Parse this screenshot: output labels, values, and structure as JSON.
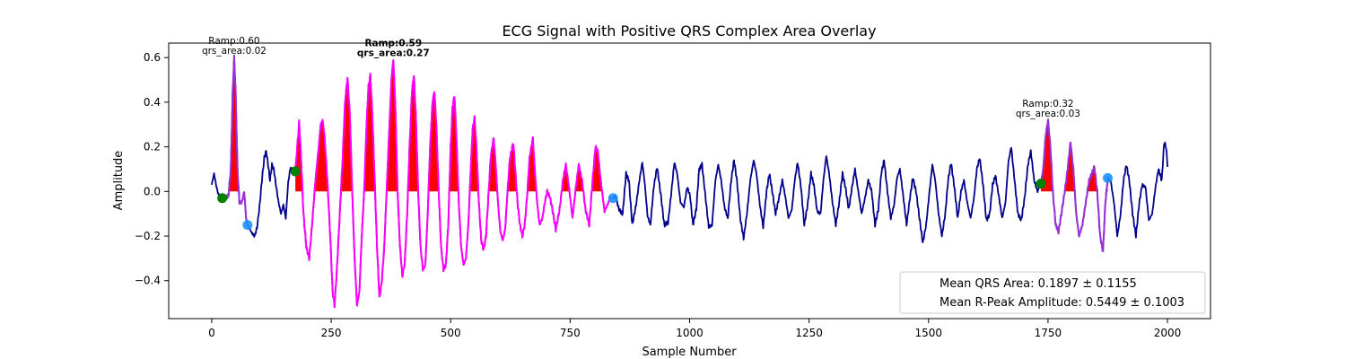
{
  "chart_data": {
    "type": "line",
    "title": "ECG Signal with Positive QRS Complex Area Overlay",
    "xlabel": "Sample Number",
    "ylabel": "Amplitude",
    "xlim": [
      -90,
      2090
    ],
    "ylim": [
      -0.57,
      0.665
    ],
    "xticks": [
      0,
      250,
      500,
      750,
      1000,
      1250,
      1500,
      1750,
      2000
    ],
    "yticks": [
      -0.4,
      -0.2,
      0.0,
      0.2,
      0.4,
      0.6
    ],
    "xtick_labels": [
      "0",
      "250",
      "500",
      "750",
      "1000",
      "1250",
      "1500",
      "1750",
      "2000"
    ],
    "ytick_labels": [
      "−0.4",
      "−0.2",
      "0.0",
      "0.2",
      "0.4",
      "0.6"
    ],
    "grid": false,
    "legend_position": "lower right",
    "legend": [
      "Mean QRS Area: 0.1897 ± 0.1155",
      "Mean R-Peak Amplitude: 0.5449 ± 0.1003"
    ],
    "colors": {
      "signal": "#00008b",
      "segment_magenta": "#ff00ff",
      "segment_purple": "#9b30d9",
      "area_fill": "#ff0000",
      "onset_marker": "#008000",
      "offset_marker": "#1e90ff"
    },
    "segments": [
      {
        "name": "segment 1",
        "x_start": 18,
        "x_end": 75,
        "color": "purple"
      },
      {
        "name": "segment 2",
        "x_start": 175,
        "x_end": 840,
        "color": "magenta"
      },
      {
        "name": "segment 3",
        "x_start": 1735,
        "x_end": 1875,
        "color": "purple"
      }
    ],
    "qrs_peaks": [
      {
        "x": 47,
        "y": 0.6
      },
      {
        "x": 183,
        "y": 0.31
      },
      {
        "x": 232,
        "y": 0.32
      },
      {
        "x": 284,
        "y": 0.51
      },
      {
        "x": 332,
        "y": 0.52
      },
      {
        "x": 380,
        "y": 0.59
      },
      {
        "x": 423,
        "y": 0.52
      },
      {
        "x": 466,
        "y": 0.45
      },
      {
        "x": 508,
        "y": 0.43
      },
      {
        "x": 550,
        "y": 0.33
      },
      {
        "x": 590,
        "y": 0.24
      },
      {
        "x": 631,
        "y": 0.22
      },
      {
        "x": 672,
        "y": 0.24
      },
      {
        "x": 1750,
        "y": 0.32
      },
      {
        "x": 1797,
        "y": 0.22
      },
      {
        "x": 1847,
        "y": 0.11
      }
    ],
    "onset_markers": [
      {
        "x": 22,
        "y": -0.03
      },
      {
        "x": 175,
        "y": 0.09
      },
      {
        "x": 1735,
        "y": 0.035
      }
    ],
    "offset_markers": [
      {
        "x": 75,
        "y": -0.15
      },
      {
        "x": 840,
        "y": -0.03
      },
      {
        "x": 1875,
        "y": 0.06
      }
    ],
    "annotations": [
      {
        "x": 47,
        "y": 0.6,
        "text": "Ramp:0.60\nqrs_area:0.02",
        "bold": false
      },
      {
        "x": 380,
        "y": 0.59,
        "text": "Ramp:0.59\nqrs_area:0.27",
        "bold": true
      },
      {
        "x": 1750,
        "y": 0.32,
        "text": "Ramp:0.32\nqrs_area:0.03",
        "bold": false
      }
    ],
    "signal_x_range": [
      0,
      2000
    ],
    "signal_keypoints": [
      [
        0,
        0.03
      ],
      [
        5,
        0.08
      ],
      [
        10,
        0.02
      ],
      [
        15,
        -0.02
      ],
      [
        22,
        -0.03
      ],
      [
        28,
        -0.03
      ],
      [
        35,
        -0.02
      ],
      [
        40,
        0.1
      ],
      [
        44,
        0.45
      ],
      [
        47,
        0.6
      ],
      [
        50,
        0.45
      ],
      [
        54,
        0.1
      ],
      [
        58,
        -0.05
      ],
      [
        63,
        -0.05
      ],
      [
        68,
        0.0
      ],
      [
        72,
        -0.12
      ],
      [
        75,
        -0.15
      ],
      [
        80,
        -0.17
      ],
      [
        85,
        -0.19
      ],
      [
        90,
        -0.2
      ],
      [
        95,
        -0.16
      ],
      [
        100,
        -0.07
      ],
      [
        105,
        0.05
      ],
      [
        110,
        0.15
      ],
      [
        114,
        0.18
      ],
      [
        118,
        0.12
      ],
      [
        122,
        0.05
      ],
      [
        126,
        0.12
      ],
      [
        130,
        0.1
      ],
      [
        135,
        0.02
      ],
      [
        140,
        -0.05
      ],
      [
        145,
        -0.1
      ],
      [
        150,
        -0.06
      ],
      [
        155,
        -0.12
      ],
      [
        160,
        0.04
      ],
      [
        165,
        0.11
      ],
      [
        170,
        0.08
      ],
      [
        175,
        0.09
      ],
      [
        179,
        0.2
      ],
      [
        183,
        0.31
      ],
      [
        187,
        0.15
      ],
      [
        192,
        -0.1
      ],
      [
        198,
        -0.25
      ],
      [
        204,
        -0.3
      ],
      [
        210,
        -0.15
      ],
      [
        217,
        0.05
      ],
      [
        224,
        0.2
      ],
      [
        228,
        0.3
      ],
      [
        232,
        0.32
      ],
      [
        236,
        0.25
      ],
      [
        242,
        0.05
      ],
      [
        248,
        -0.2
      ],
      [
        253,
        -0.45
      ],
      [
        257,
        -0.51
      ],
      [
        262,
        -0.35
      ],
      [
        268,
        -0.1
      ],
      [
        274,
        0.15
      ],
      [
        279,
        0.4
      ],
      [
        284,
        0.51
      ],
      [
        289,
        0.35
      ],
      [
        294,
        0.0
      ],
      [
        299,
        -0.3
      ],
      [
        304,
        -0.51
      ],
      [
        309,
        -0.45
      ],
      [
        314,
        -0.2
      ],
      [
        319,
        0.0
      ],
      [
        324,
        0.3
      ],
      [
        328,
        0.47
      ],
      [
        332,
        0.52
      ],
      [
        336,
        0.35
      ],
      [
        341,
        0.05
      ],
      [
        346,
        -0.25
      ],
      [
        351,
        -0.48
      ],
      [
        356,
        -0.4
      ],
      [
        361,
        -0.25
      ],
      [
        366,
        0.0
      ],
      [
        371,
        0.25
      ],
      [
        376,
        0.5
      ],
      [
        380,
        0.59
      ],
      [
        384,
        0.4
      ],
      [
        389,
        0.0
      ],
      [
        394,
        -0.25
      ],
      [
        399,
        -0.38
      ],
      [
        404,
        -0.32
      ],
      [
        409,
        -0.1
      ],
      [
        414,
        0.2
      ],
      [
        419,
        0.45
      ],
      [
        423,
        0.52
      ],
      [
        427,
        0.35
      ],
      [
        432,
        0.0
      ],
      [
        437,
        -0.25
      ],
      [
        442,
        -0.35
      ],
      [
        447,
        -0.33
      ],
      [
        452,
        -0.1
      ],
      [
        457,
        0.2
      ],
      [
        462,
        0.4
      ],
      [
        466,
        0.45
      ],
      [
        470,
        0.3
      ],
      [
        475,
        0.0
      ],
      [
        480,
        -0.25
      ],
      [
        485,
        -0.35
      ],
      [
        490,
        -0.33
      ],
      [
        495,
        -0.15
      ],
      [
        500,
        0.2
      ],
      [
        504,
        0.38
      ],
      [
        508,
        0.43
      ],
      [
        512,
        0.25
      ],
      [
        517,
        -0.05
      ],
      [
        522,
        -0.25
      ],
      [
        527,
        -0.33
      ],
      [
        532,
        -0.3
      ],
      [
        537,
        -0.15
      ],
      [
        542,
        0.1
      ],
      [
        546,
        0.28
      ],
      [
        550,
        0.33
      ],
      [
        554,
        0.2
      ],
      [
        559,
        -0.05
      ],
      [
        564,
        -0.22
      ],
      [
        569,
        -0.26
      ],
      [
        574,
        -0.2
      ],
      [
        579,
        -0.02
      ],
      [
        584,
        0.16
      ],
      [
        590,
        0.24
      ],
      [
        594,
        0.13
      ],
      [
        599,
        -0.05
      ],
      [
        604,
        -0.18
      ],
      [
        609,
        -0.22
      ],
      [
        614,
        -0.17
      ],
      [
        619,
        0.0
      ],
      [
        624,
        0.15
      ],
      [
        631,
        0.22
      ],
      [
        635,
        0.1
      ],
      [
        640,
        -0.05
      ],
      [
        645,
        -0.15
      ],
      [
        650,
        -0.2
      ],
      [
        655,
        -0.15
      ],
      [
        660,
        -0.02
      ],
      [
        665,
        0.15
      ],
      [
        672,
        0.24
      ],
      [
        676,
        0.1
      ],
      [
        681,
        -0.05
      ],
      [
        686,
        -0.15
      ],
      [
        692,
        -0.12
      ],
      [
        697,
        -0.05
      ],
      [
        702,
        0.0
      ],
      [
        707,
        -0.02
      ],
      [
        712,
        -0.07
      ],
      [
        720,
        -0.17
      ],
      [
        728,
        -0.08
      ],
      [
        735,
        0.05
      ],
      [
        741,
        0.12
      ],
      [
        747,
        0.03
      ],
      [
        755,
        -0.12
      ],
      [
        762,
        0.02
      ],
      [
        768,
        0.12
      ],
      [
        775,
        0.05
      ],
      [
        782,
        -0.08
      ],
      [
        790,
        -0.15
      ],
      [
        797,
        0.05
      ],
      [
        803,
        0.2
      ],
      [
        808,
        0.18
      ],
      [
        814,
        0.05
      ],
      [
        822,
        -0.09
      ],
      [
        828,
        -0.06
      ],
      [
        834,
        -0.03
      ],
      [
        840,
        -0.03
      ],
      [
        845,
        -0.02
      ],
      [
        852,
        -0.08
      ],
      [
        860,
        -0.1
      ],
      [
        867,
        0.08
      ],
      [
        873,
        0.05
      ],
      [
        880,
        -0.15
      ],
      [
        888,
        -0.06
      ],
      [
        895,
        0.05
      ],
      [
        901,
        0.13
      ],
      [
        906,
        0.04
      ],
      [
        912,
        -0.11
      ],
      [
        918,
        -0.15
      ],
      [
        925,
        0.02
      ],
      [
        932,
        0.11
      ],
      [
        940,
        -0.02
      ],
      [
        947,
        -0.15
      ],
      [
        955,
        -0.14
      ],
      [
        962,
        0.0
      ],
      [
        968,
        0.13
      ],
      [
        974,
        0.08
      ],
      [
        981,
        -0.05
      ],
      [
        988,
        -0.07
      ],
      [
        995,
        0.02
      ],
      [
        1001,
        -0.02
      ],
      [
        1007,
        -0.15
      ],
      [
        1014,
        -0.08
      ],
      [
        1020,
        0.1
      ],
      [
        1026,
        0.12
      ],
      [
        1033,
        -0.02
      ],
      [
        1040,
        -0.16
      ],
      [
        1047,
        -0.15
      ],
      [
        1054,
        0.05
      ],
      [
        1060,
        0.12
      ],
      [
        1066,
        0.05
      ],
      [
        1073,
        -0.07
      ],
      [
        1080,
        -0.12
      ],
      [
        1087,
        0.05
      ],
      [
        1093,
        0.14
      ],
      [
        1099,
        0.05
      ],
      [
        1106,
        -0.12
      ],
      [
        1113,
        -0.21
      ],
      [
        1120,
        -0.1
      ],
      [
        1127,
        0.05
      ],
      [
        1134,
        0.14
      ],
      [
        1140,
        0.08
      ],
      [
        1147,
        -0.06
      ],
      [
        1154,
        -0.16
      ],
      [
        1161,
        0.0
      ],
      [
        1167,
        0.08
      ],
      [
        1173,
        0.0
      ],
      [
        1180,
        -0.1
      ],
      [
        1187,
        -0.03
      ],
      [
        1194,
        0.05
      ],
      [
        1200,
        -0.02
      ],
      [
        1207,
        -0.12
      ],
      [
        1214,
        -0.08
      ],
      [
        1220,
        0.05
      ],
      [
        1226,
        0.13
      ],
      [
        1233,
        0.02
      ],
      [
        1240,
        -0.15
      ],
      [
        1247,
        -0.06
      ],
      [
        1254,
        0.08
      ],
      [
        1260,
        0.03
      ],
      [
        1267,
        -0.09
      ],
      [
        1274,
        -0.1
      ],
      [
        1280,
        0.05
      ],
      [
        1286,
        0.16
      ],
      [
        1292,
        0.08
      ],
      [
        1299,
        -0.05
      ],
      [
        1306,
        -0.15
      ],
      [
        1313,
        -0.05
      ],
      [
        1320,
        0.08
      ],
      [
        1326,
        0.02
      ],
      [
        1333,
        -0.08
      ],
      [
        1340,
        0.02
      ],
      [
        1346,
        0.1
      ],
      [
        1353,
        0.0
      ],
      [
        1360,
        -0.1
      ],
      [
        1367,
        -0.03
      ],
      [
        1374,
        0.05
      ],
      [
        1381,
        0.0
      ],
      [
        1388,
        -0.15
      ],
      [
        1395,
        -0.08
      ],
      [
        1401,
        0.08
      ],
      [
        1407,
        0.14
      ],
      [
        1414,
        0.0
      ],
      [
        1421,
        -0.12
      ],
      [
        1428,
        -0.06
      ],
      [
        1434,
        0.06
      ],
      [
        1440,
        0.1
      ],
      [
        1447,
        -0.02
      ],
      [
        1454,
        -0.15
      ],
      [
        1461,
        -0.03
      ],
      [
        1467,
        0.06
      ],
      [
        1474,
        0.0
      ],
      [
        1481,
        -0.12
      ],
      [
        1488,
        -0.23
      ],
      [
        1495,
        -0.15
      ],
      [
        1502,
        0.0
      ],
      [
        1508,
        0.12
      ],
      [
        1514,
        0.05
      ],
      [
        1521,
        -0.1
      ],
      [
        1528,
        -0.2
      ],
      [
        1535,
        -0.1
      ],
      [
        1541,
        0.05
      ],
      [
        1547,
        0.13
      ],
      [
        1554,
        0.02
      ],
      [
        1561,
        -0.12
      ],
      [
        1568,
        0.0
      ],
      [
        1574,
        0.05
      ],
      [
        1581,
        -0.05
      ],
      [
        1588,
        -0.12
      ],
      [
        1595,
        -0.03
      ],
      [
        1601,
        0.1
      ],
      [
        1607,
        0.15
      ],
      [
        1614,
        0.03
      ],
      [
        1621,
        -0.13
      ],
      [
        1628,
        -0.1
      ],
      [
        1634,
        0.03
      ],
      [
        1640,
        0.07
      ],
      [
        1647,
        -0.02
      ],
      [
        1654,
        -0.12
      ],
      [
        1661,
        -0.05
      ],
      [
        1667,
        0.13
      ],
      [
        1673,
        0.2
      ],
      [
        1680,
        0.05
      ],
      [
        1687,
        -0.1
      ],
      [
        1694,
        -0.13
      ],
      [
        1701,
        -0.03
      ],
      [
        1708,
        0.12
      ],
      [
        1714,
        0.18
      ],
      [
        1721,
        0.05
      ],
      [
        1728,
        0.0
      ],
      [
        1735,
        0.035
      ],
      [
        1740,
        0.1
      ],
      [
        1745,
        0.25
      ],
      [
        1750,
        0.32
      ],
      [
        1755,
        0.2
      ],
      [
        1760,
        0.0
      ],
      [
        1766,
        -0.15
      ],
      [
        1772,
        -0.18
      ],
      [
        1778,
        -0.1
      ],
      [
        1785,
        0.0
      ],
      [
        1791,
        0.1
      ],
      [
        1797,
        0.22
      ],
      [
        1803,
        0.1
      ],
      [
        1809,
        -0.1
      ],
      [
        1815,
        -0.2
      ],
      [
        1822,
        -0.15
      ],
      [
        1829,
        -0.05
      ],
      [
        1836,
        0.05
      ],
      [
        1842,
        0.08
      ],
      [
        1847,
        0.11
      ],
      [
        1853,
        0.0
      ],
      [
        1859,
        -0.2
      ],
      [
        1865,
        -0.27
      ],
      [
        1870,
        -0.05
      ],
      [
        1875,
        0.06
      ],
      [
        1881,
        0.05
      ],
      [
        1888,
        -0.05
      ],
      [
        1895,
        -0.2
      ],
      [
        1902,
        -0.1
      ],
      [
        1908,
        0.05
      ],
      [
        1914,
        0.12
      ],
      [
        1920,
        0.05
      ],
      [
        1927,
        -0.1
      ],
      [
        1934,
        -0.2
      ],
      [
        1941,
        -0.05
      ],
      [
        1947,
        0.03
      ],
      [
        1954,
        0.02
      ],
      [
        1961,
        -0.13
      ],
      [
        1968,
        -0.1
      ],
      [
        1975,
        0.02
      ],
      [
        1981,
        0.1
      ],
      [
        1988,
        0.05
      ],
      [
        1993,
        0.22
      ],
      [
        1997,
        0.2
      ],
      [
        2000,
        0.12
      ],
      [
        2003,
        0.07
      ],
      [
        2008,
        0.05
      ]
    ]
  }
}
